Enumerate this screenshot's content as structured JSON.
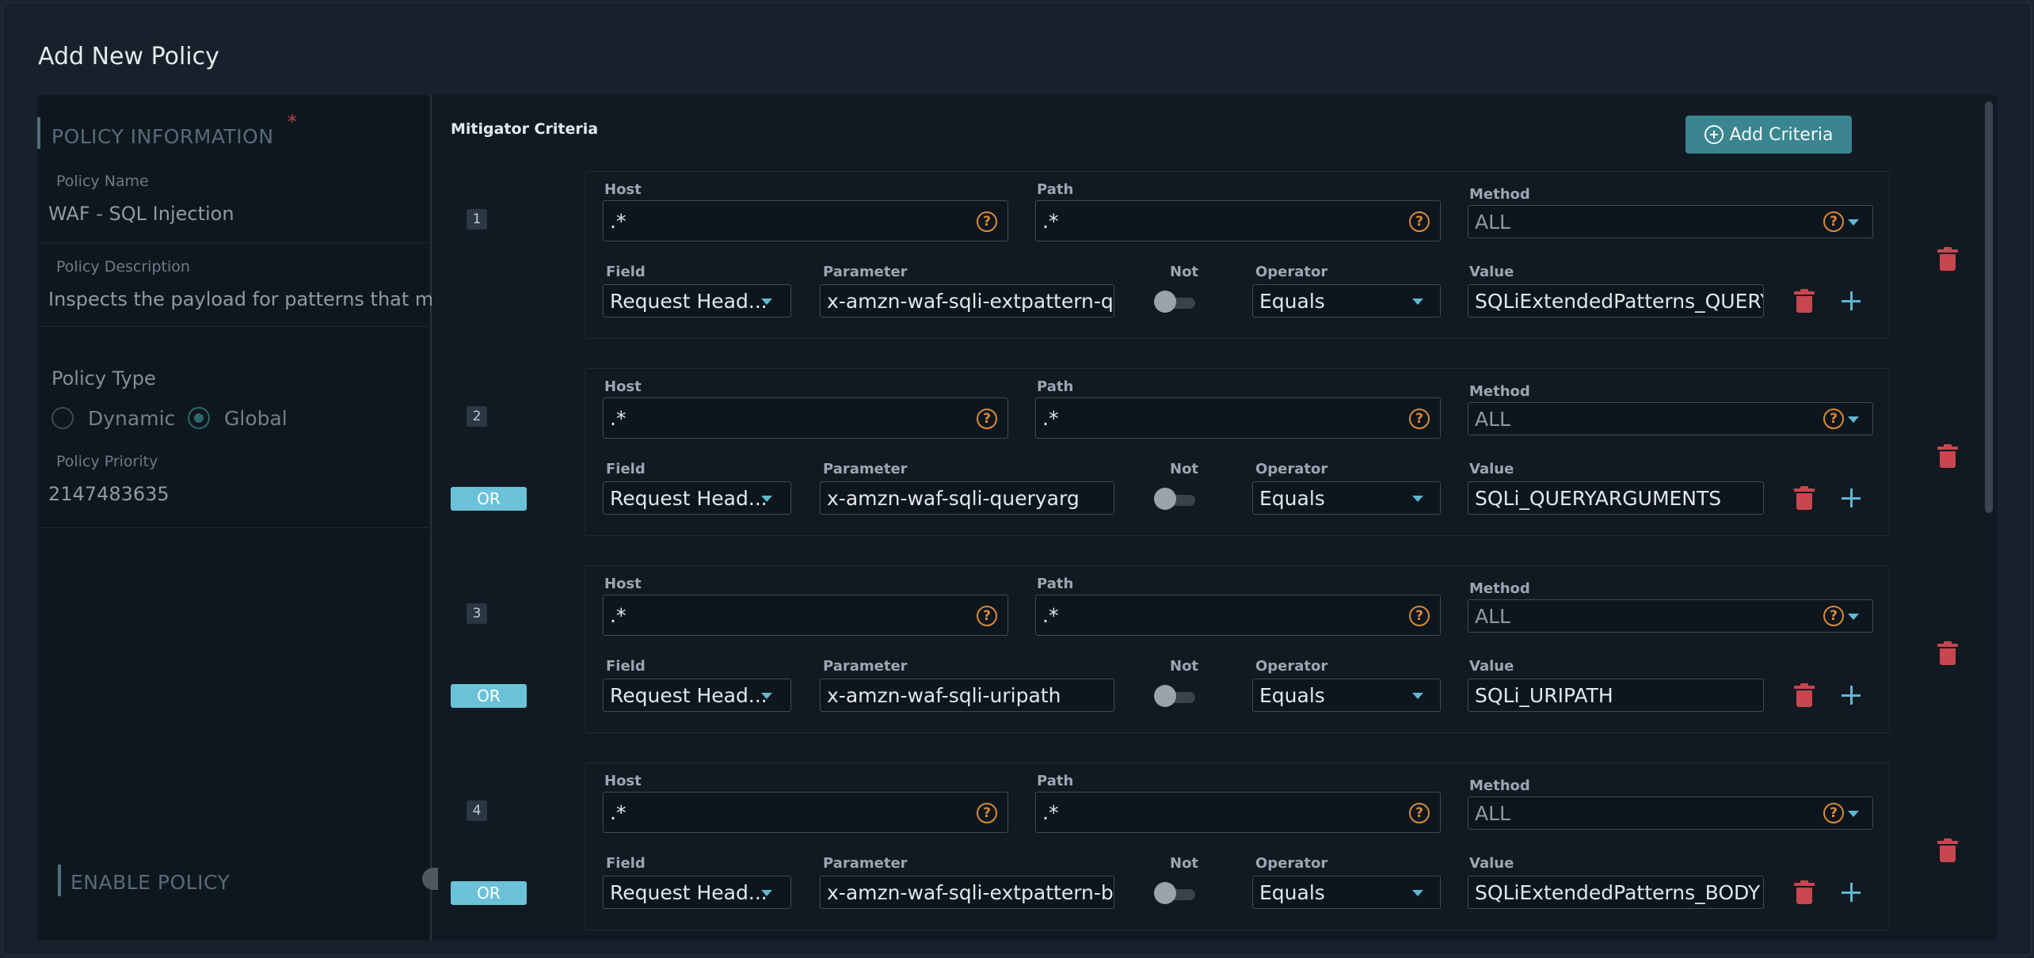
{
  "modal": {
    "title": "Add New Policy"
  },
  "left": {
    "section_title": "POLICY INFORMATION",
    "required_marker": "*",
    "policy_name_label": "Policy Name",
    "policy_name_value": "WAF - SQL Injection",
    "policy_description_label": "Policy Description",
    "policy_description_value": "Inspects the payload for patterns that ma",
    "policy_type_label": "Policy Type",
    "policy_type_options": [
      "Dynamic",
      "Global"
    ],
    "policy_type_selected": "Global",
    "policy_priority_label": "Policy Priority",
    "policy_priority_value": "2147483635",
    "enable_policy_label": "ENABLE POLICY"
  },
  "right": {
    "title": "Mitigator Criteria",
    "add_criteria_label": "Add Criteria",
    "labels": {
      "host": "Host",
      "path": "Path",
      "method": "Method",
      "field": "Field",
      "parameter": "Parameter",
      "not": "Not",
      "operator": "Operator",
      "value": "Value"
    },
    "or_label": "OR",
    "help_glyph": "?",
    "criteria": [
      {
        "number": "1",
        "host": ".*",
        "path": ".*",
        "method": "ALL",
        "field": "Request Head...",
        "parameter": "x-amzn-waf-sqli-extpattern-que",
        "not": false,
        "operator": "Equals",
        "value": "SQLiExtendedPatterns_QUERYA",
        "show_or": false
      },
      {
        "number": "2",
        "host": ".*",
        "path": ".*",
        "method": "ALL",
        "field": "Request Head...",
        "parameter": "x-amzn-waf-sqli-queryarg",
        "not": false,
        "operator": "Equals",
        "value": "SQLi_QUERYARGUMENTS",
        "show_or": true
      },
      {
        "number": "3",
        "host": ".*",
        "path": ".*",
        "method": "ALL",
        "field": "Request Head...",
        "parameter": "x-amzn-waf-sqli-uripath",
        "not": false,
        "operator": "Equals",
        "value": "SQLi_URIPATH",
        "show_or": true
      },
      {
        "number": "4",
        "host": ".*",
        "path": ".*",
        "method": "ALL",
        "field": "Request Head...",
        "parameter": "x-amzn-waf-sqli-extpattern-boc",
        "not": false,
        "operator": "Equals",
        "value": "SQLiExtendedPatterns_BODY",
        "show_or": true
      }
    ]
  },
  "colors": {
    "accent": "#3a8590",
    "or_badge": "#6bc2d8",
    "delete": "#c8464e",
    "help": "#d98a3a"
  }
}
